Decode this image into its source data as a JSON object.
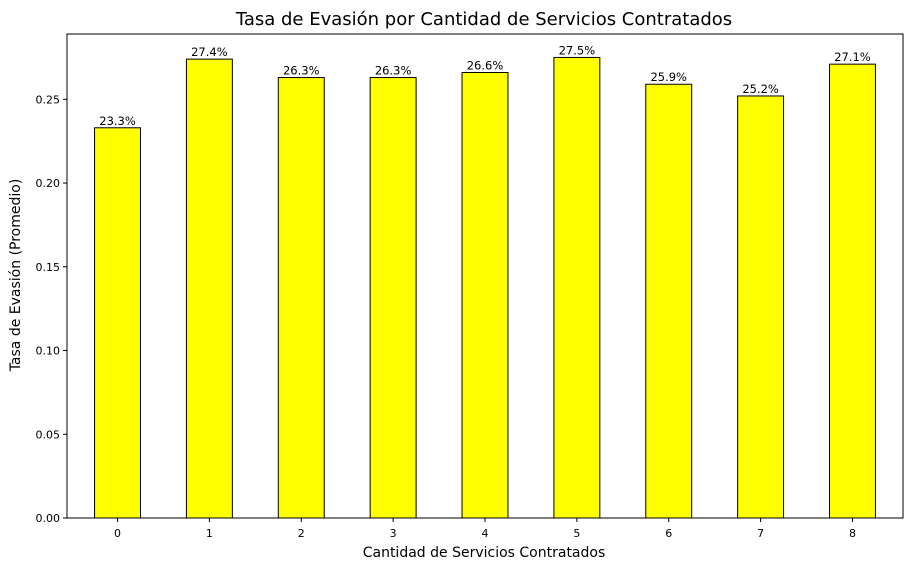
{
  "chart_data": {
    "type": "bar",
    "title": "Tasa de Evasión por Cantidad de Servicios Contratados",
    "xlabel": "Cantidad de Servicios Contratados",
    "ylabel": "Tasa de Evasión (Promedio)",
    "categories": [
      "0",
      "1",
      "2",
      "3",
      "4",
      "5",
      "6",
      "7",
      "8"
    ],
    "values": [
      0.233,
      0.274,
      0.263,
      0.263,
      0.266,
      0.275,
      0.259,
      0.252,
      0.271
    ],
    "data_labels": [
      "23.3%",
      "27.4%",
      "26.3%",
      "26.3%",
      "26.6%",
      "27.5%",
      "25.9%",
      "25.2%",
      "27.1%"
    ],
    "ylim": [
      0,
      0.289
    ],
    "yticks": [
      0.0,
      0.05,
      0.1,
      0.15,
      0.2,
      0.25
    ],
    "ytick_labels": [
      "0.00",
      "0.05",
      "0.10",
      "0.15",
      "0.20",
      "0.25"
    ],
    "bar_color": "#ffff00",
    "edge_color": "#000000",
    "grid": false,
    "legend": "none"
  }
}
